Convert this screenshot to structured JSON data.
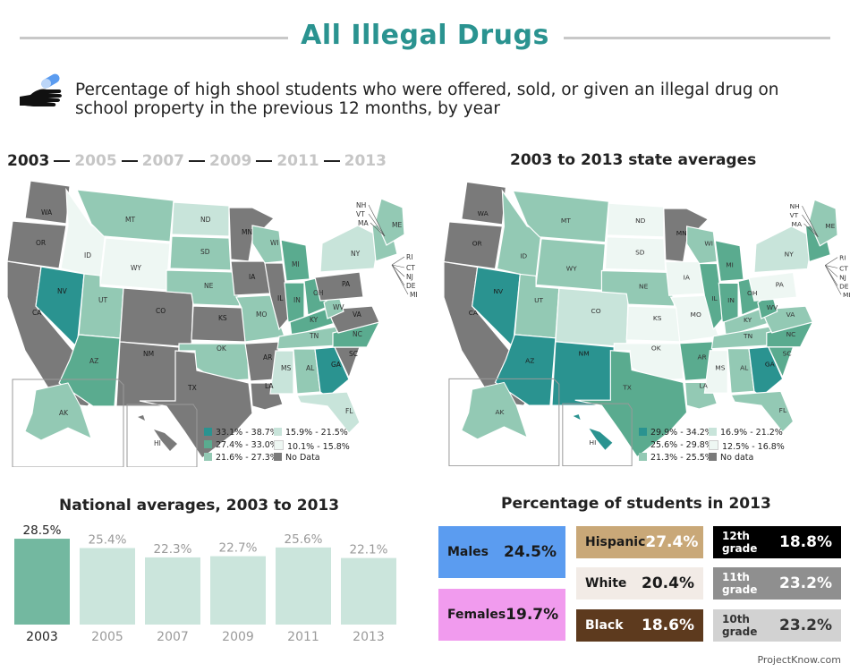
{
  "title": "All Illegal Drugs",
  "subtitle": "Percentage of high shool students who were offered, sold, or given an illegal drug on school property in the previous 12 months, by year",
  "icon": "hand-pill-icon",
  "years": [
    "2003",
    "2005",
    "2007",
    "2009",
    "2011",
    "2013"
  ],
  "active_year": "2003",
  "right_map_title": "2003 to 2013 state averages",
  "left_legend": {
    "items": [
      {
        "label": "33.1% - 38.7%",
        "color": "#2a9390"
      },
      {
        "label": "27.4% - 33.0%",
        "color": "#5aab8f"
      },
      {
        "label": "21.6% - 27.3%",
        "color": "#93c9b4"
      },
      {
        "label": "15.9% - 21.5%",
        "color": "#c8e4da"
      },
      {
        "label": "10.1% - 15.8%",
        "color": "#eef7f3"
      },
      {
        "label": "No Data",
        "color": "#7a7a7a"
      }
    ]
  },
  "right_legend": {
    "items": [
      {
        "label": "29.9% - 34.2%",
        "color": "#2a9390"
      },
      {
        "label": "25.6% - 29.8%",
        "color": "#5aab8f"
      },
      {
        "label": "21.3% - 25.5%",
        "color": "#93c9b4"
      },
      {
        "label": "16.9% - 21.2%",
        "color": "#c8e4da"
      },
      {
        "label": "12.5% - 16.8%",
        "color": "#eef7f3"
      },
      {
        "label": "No data",
        "color": "#7a7a7a"
      }
    ]
  },
  "state_labels": {
    "main": [
      "WA",
      "OR",
      "CA",
      "NV",
      "ID",
      "MT",
      "WY",
      "UT",
      "AZ",
      "CO",
      "NM",
      "ND",
      "SD",
      "NE",
      "KS",
      "OK",
      "TX",
      "MN",
      "IA",
      "MO",
      "AR",
      "LA",
      "WI",
      "IL",
      "MI",
      "IN",
      "OH",
      "KY",
      "TN",
      "MS",
      "AL",
      "GA",
      "FL",
      "SC",
      "NC",
      "VA",
      "WV",
      "PA",
      "NY",
      "ME"
    ],
    "northeast": [
      "NH",
      "VT",
      "MA",
      "RI",
      "CT",
      "NJ",
      "DE",
      "MD"
    ],
    "insets": [
      "AK",
      "HI"
    ]
  },
  "bar_chart_title": "National averages, 2003 to 2013",
  "chart_data": {
    "type": "bar",
    "title": "National averages, 2003 to 2013",
    "categories": [
      "2003",
      "2005",
      "2007",
      "2009",
      "2011",
      "2013"
    ],
    "values": [
      28.5,
      25.4,
      22.3,
      22.7,
      25.6,
      22.1
    ],
    "value_labels": [
      "28.5%",
      "25.4%",
      "22.3%",
      "22.7%",
      "25.6%",
      "22.1%"
    ],
    "highlight": "2003",
    "colors": {
      "highlight": "#73b8a0",
      "normal": "#cbe5dc"
    },
    "xlabel": "",
    "ylabel": "",
    "ylim": [
      0,
      30
    ],
    "grid": false
  },
  "demographics_title": "Percentage of students in 2013",
  "demographics": [
    {
      "label": "Males",
      "value": "24.5%",
      "bg": "#5b9cf0",
      "fg": "#1a1a1a"
    },
    {
      "label": "Females",
      "value": "19.7%",
      "bg": "#f19bee",
      "fg": "#1a1a1a"
    },
    {
      "label": "Hispanic",
      "value": "27.4%",
      "bg": "#c9a878",
      "fg": "#ffffff",
      "label_fg": "#1a1a1a"
    },
    {
      "label": "White",
      "value": "20.4%",
      "bg": "#f2ebe6",
      "fg": "#1a1a1a"
    },
    {
      "label": "Black",
      "value": "18.6%",
      "bg": "#5d3a1e",
      "fg": "#ffffff"
    },
    {
      "label": "12th grade",
      "value": "18.8%",
      "bg": "#000000",
      "fg": "#ffffff"
    },
    {
      "label": "11th grade",
      "value": "23.2%",
      "bg": "#8f8f8f",
      "fg": "#ffffff"
    },
    {
      "label": "10th grade",
      "value": "23.2%",
      "bg": "#d2d2d2",
      "fg": "#333333"
    }
  ],
  "source": "ProjectKnow.com"
}
